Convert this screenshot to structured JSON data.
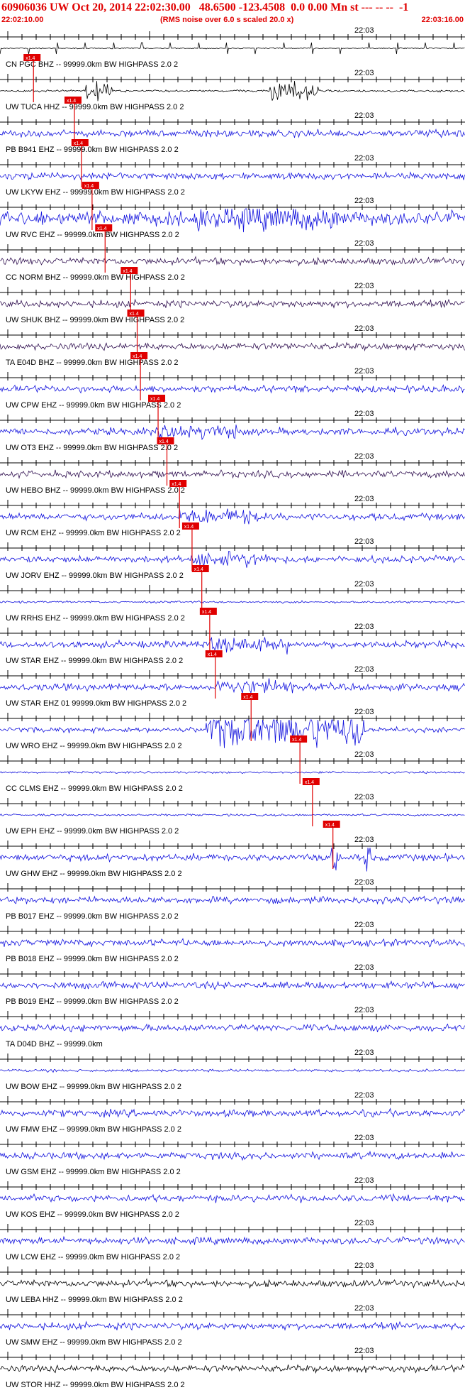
{
  "header": {
    "title": "60906036 UW Oct 20, 2014 22:02:30.00   48.6500 -123.4508  0.0 0.00 Mn st --- -- --  -1",
    "start_time": "22:02:10.00",
    "note": "(RMS noise over 6.0 s scaled 20.0 x)",
    "end_time": "22:03:16.00"
  },
  "tick_time_label": "22:03",
  "pick_label": "x1.4",
  "colors": {
    "blue": "#1010dd",
    "dark": "#301050",
    "black": "#000000",
    "pick": "#e00000",
    "header": "#e00000"
  },
  "traces": [
    {
      "label": "CN PGC BHZ -- 99999.0km BW  HIGHPASS  2.0  2",
      "color": "black",
      "style": "spikes",
      "pick": null
    },
    {
      "label": "UW TUCA HHZ -- 99999.0km BW  HIGHPASS  2.0  2",
      "color": "black",
      "style": "bursts",
      "pick": 0.072
    },
    {
      "label": "PB B941 EHZ -- 99999.0km BW  HIGHPASS  2.0  2",
      "color": "blue",
      "style": "noise",
      "pick": 0.16
    },
    {
      "label": "UW LKYW EHZ -- 99999.0km BW  HIGHPASS  2.0  2",
      "color": "blue",
      "style": "noise",
      "pick": 0.175
    },
    {
      "label": "UW RVC EHZ -- 99999.0km BW  HIGHPASS  2.0  2",
      "color": "blue",
      "style": "strong",
      "pick": 0.198
    },
    {
      "label": "CC NORM BHZ -- 99999.0km BW  HIGHPASS  2.0  2",
      "color": "dark",
      "style": "noise",
      "pick": 0.226
    },
    {
      "label": "UW SHUK BHZ -- 99999.0km BW  HIGHPASS  2.0  2",
      "color": "dark",
      "style": "noise",
      "pick": 0.281
    },
    {
      "label": "TA E04D BHZ -- 99999.0km BW  HIGHPASS  2.0  2",
      "color": "dark",
      "style": "noise",
      "pick": 0.295
    },
    {
      "label": "UW CPW EHZ -- 99999.0km BW  HIGHPASS  2.0  2",
      "color": "blue",
      "style": "noise",
      "pick": 0.302
    },
    {
      "label": "UW OT3 EHZ -- 99999.0km BW  HIGHPASS  2.0  2",
      "color": "blue",
      "style": "event",
      "pick": 0.34
    },
    {
      "label": "UW HEBO BHZ -- 99999.0km BW  HIGHPASS  2.0  2",
      "color": "dark",
      "style": "noise",
      "pick": 0.359
    },
    {
      "label": "UW RCM EHZ -- 99999.0km BW  HIGHPASS  2.0  2",
      "color": "blue",
      "style": "event",
      "pick": 0.386
    },
    {
      "label": "UW JORV EHZ -- 99999.0km BW  HIGHPASS  2.0  2",
      "color": "blue",
      "style": "event",
      "pick": 0.413
    },
    {
      "label": "UW RRHS EHZ -- 99999.0km BW  HIGHPASS  2.0  2",
      "color": "blue",
      "style": "quiet",
      "pick": 0.434
    },
    {
      "label": "UW STAR EHZ -- 99999.0km BW  HIGHPASS  2.0  2",
      "color": "blue",
      "style": "event",
      "pick": 0.451
    },
    {
      "label": "UW STAR EHZ 01 99999.0km BW  HIGHPASS  2.0  2",
      "color": "blue",
      "style": "event",
      "pick": 0.463
    },
    {
      "label": "UW WRO EHZ -- 99999.0km BW  HIGHPASS  2.0  2",
      "color": "blue",
      "style": "huge",
      "pick": 0.54
    },
    {
      "label": "CC CLMS EHZ -- 99999.0km BW  HIGHPASS  2.0  2",
      "color": "blue",
      "style": "quiet",
      "pick": 0.645
    },
    {
      "label": "UW EPH EHZ -- 99999.0km BW  HIGHPASS  2.0  2",
      "color": "blue",
      "style": "quiet",
      "pick": 0.672
    },
    {
      "label": "UW GHW EHZ -- 99999.0km BW  HIGHPASS  2.0  2",
      "color": "blue",
      "style": "spiky",
      "pick": 0.716
    },
    {
      "label": "PB B017 EHZ -- 99999.0km BW  HIGHPASS  2.0  2",
      "color": "blue",
      "style": "noise",
      "pick": null
    },
    {
      "label": "PB B018 EHZ -- 99999.0km BW  HIGHPASS  2.0  2",
      "color": "blue",
      "style": "noise",
      "pick": null
    },
    {
      "label": "PB B019 EHZ -- 99999.0km BW  HIGHPASS  2.0  2",
      "color": "blue",
      "style": "noise",
      "pick": null
    },
    {
      "label": "TA D04D BHZ -- 99999.0km",
      "color": "blue",
      "style": "noise",
      "pick": null
    },
    {
      "label": "UW BOW EHZ -- 99999.0km BW  HIGHPASS  2.0  2",
      "color": "blue",
      "style": "flat",
      "pick": null
    },
    {
      "label": "UW FMW EHZ -- 99999.0km BW  HIGHPASS  2.0  2",
      "color": "blue",
      "style": "noise",
      "pick": null
    },
    {
      "label": "UW GSM EHZ -- 99999.0km BW  HIGHPASS  2.0  2",
      "color": "blue",
      "style": "noise",
      "pick": null
    },
    {
      "label": "UW KOS EHZ -- 99999.0km BW  HIGHPASS  2.0  2",
      "color": "blue",
      "style": "noise",
      "pick": null
    },
    {
      "label": "UW LCW EHZ -- 99999.0km BW  HIGHPASS  2.0  2",
      "color": "blue",
      "style": "noise",
      "pick": null
    },
    {
      "label": "UW LEBA HHZ -- 99999.0km BW  HIGHPASS  2.0  2",
      "color": "black",
      "style": "noise",
      "pick": null
    },
    {
      "label": "UW SMW EHZ -- 99999.0km BW  HIGHPASS  2.0  2",
      "color": "blue",
      "style": "noise",
      "pick": null
    },
    {
      "label": "UW STOR HHZ -- 99999.0km BW  HIGHPASS  2.0  2",
      "color": "black",
      "style": "noise",
      "pick": null
    }
  ]
}
